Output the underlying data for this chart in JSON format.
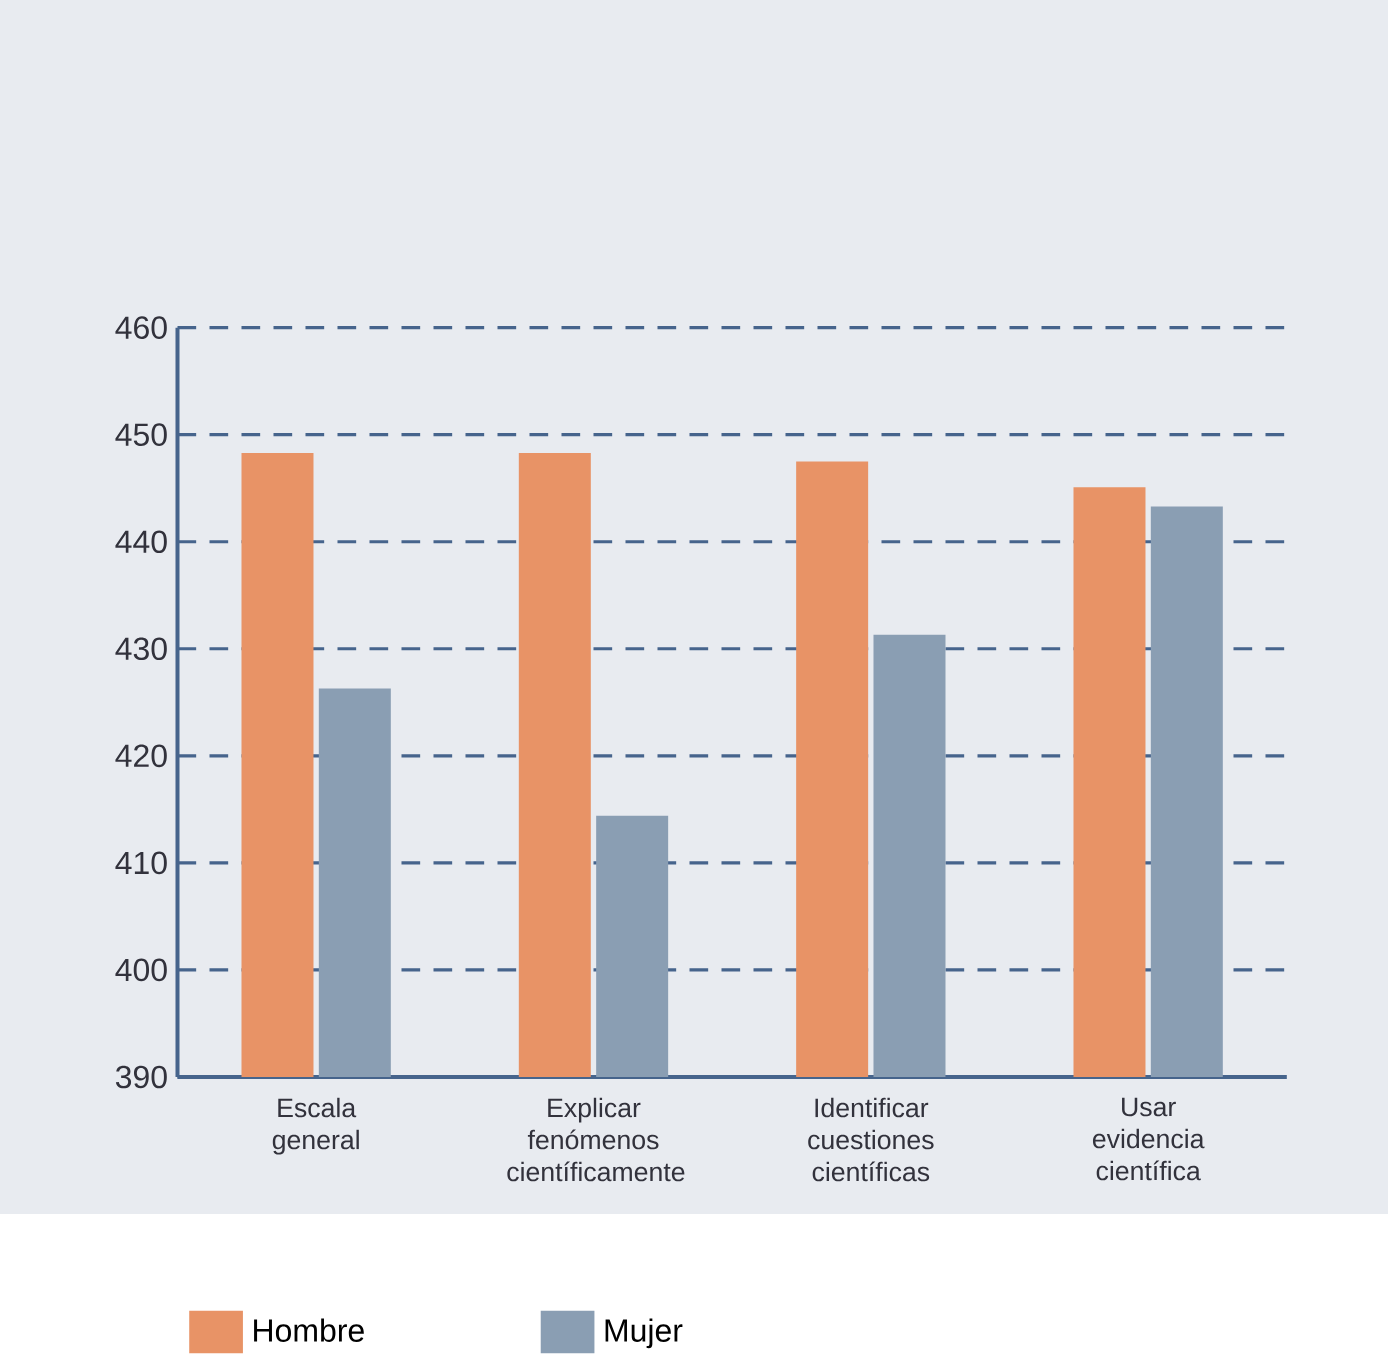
{
  "chart_data": {
    "type": "bar",
    "categories": [
      "Escala general",
      "Explicar fenómenos científicamente",
      "Identificar cuestiones científicas",
      "Usar evidencia científica"
    ],
    "series": [
      {
        "name": "Hombre",
        "color": "#e89366",
        "values": [
          448.3,
          448.3,
          447.5,
          445.1
        ]
      },
      {
        "name": "Mujer",
        "color": "#8a9eb3",
        "values": [
          426.3,
          414.4,
          431.3,
          443.3
        ]
      }
    ],
    "ylim": [
      390,
      460
    ],
    "yticks": [
      390,
      400,
      410,
      420,
      430,
      440,
      450,
      460
    ],
    "grid": "y",
    "legend": "bottom left"
  }
}
